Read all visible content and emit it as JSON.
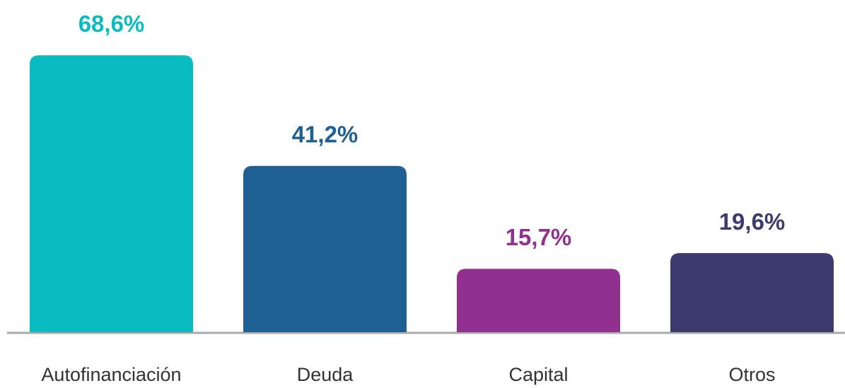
{
  "chart_data": {
    "type": "bar",
    "categories": [
      "Autofinanciación",
      "Deuda",
      "Capital",
      "Otros"
    ],
    "values": [
      68.6,
      41.2,
      15.7,
      19.6
    ],
    "value_labels": [
      "68,6%",
      "41,2%",
      "15,7%",
      "19,6%"
    ],
    "colors": [
      "#0abcc2",
      "#1f6094",
      "#92308f",
      "#3d3a70"
    ]
  }
}
